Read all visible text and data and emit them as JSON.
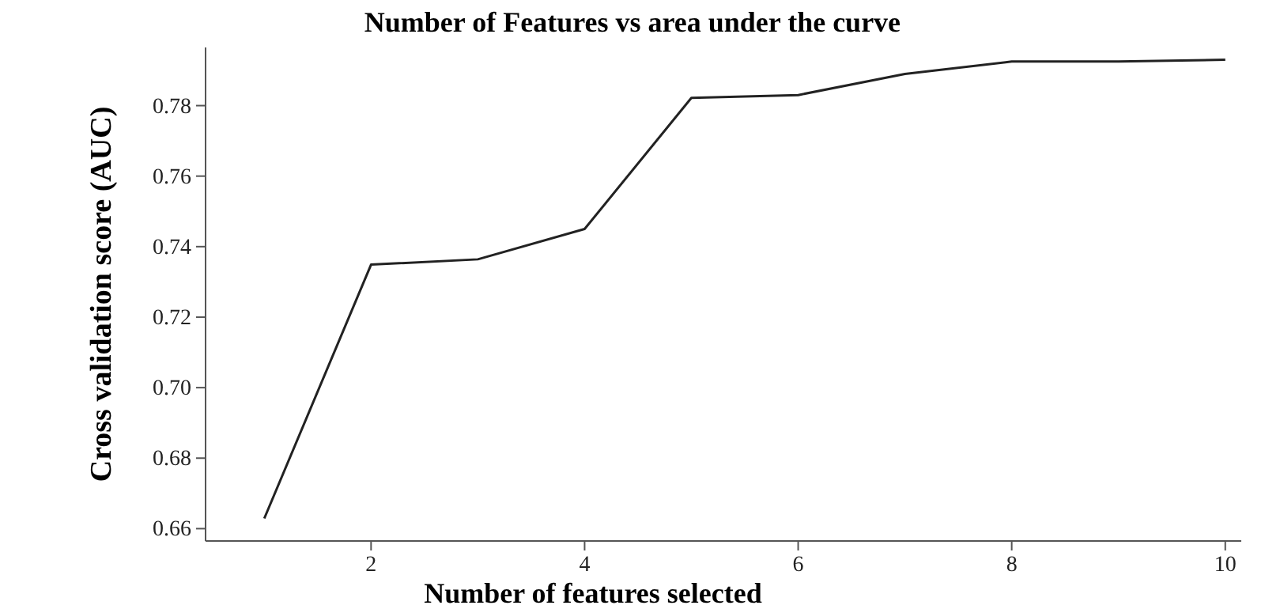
{
  "chart_data": {
    "type": "line",
    "title": "Number of Features vs area under the curve",
    "xlabel": "Number of features selected",
    "ylabel": "Cross validation score (AUC)",
    "x": [
      1,
      2,
      3,
      4,
      5,
      6,
      7,
      8,
      9,
      10
    ],
    "series": [
      {
        "color": "#222222",
        "values": [
          0.6629,
          0.7349,
          0.7364,
          0.745,
          0.7822,
          0.783,
          0.789,
          0.7925,
          0.7925,
          0.793
        ]
      }
    ],
    "xlim": [
      0.45,
      10.15
    ],
    "xticks": [
      2,
      4,
      6,
      8,
      10
    ],
    "ylim": [
      0.6565,
      0.7965
    ],
    "yticks": [
      0.66,
      0.68,
      {
        "value": 0.7,
        "label": "0.70"
      },
      0.72,
      0.74,
      0.76,
      0.78
    ],
    "grid": false,
    "marker": "none",
    "line_style": "solid"
  }
}
